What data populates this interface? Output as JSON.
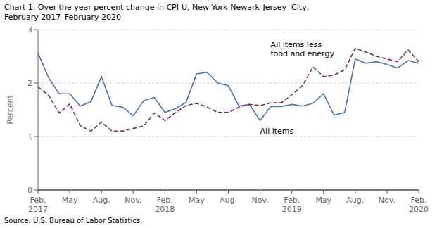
{
  "chart_data": {
    "type": "line",
    "title": "Chart 1. Over-the-year percent change in CPI-U, New York-Newark-Jersey  City,\nFebruary 2017–February 2020",
    "ylabel": "Percent",
    "source": "Source: U.S. Bureau of Labor Statistics.",
    "categories": [
      "Feb.\n2017",
      null,
      null,
      "May",
      null,
      null,
      "Aug.",
      null,
      null,
      "Nov.",
      null,
      null,
      "Feb.\n2018",
      null,
      null,
      "May",
      null,
      null,
      "Aug.",
      null,
      null,
      "Nov.",
      null,
      null,
      "Feb.\n2019",
      null,
      null,
      "May",
      null,
      null,
      "Aug.",
      null,
      null,
      "Nov.",
      null,
      null,
      "Feb.\n2020"
    ],
    "series": [
      {
        "name": "All items",
        "color": "#4472c4",
        "line_style": "solid",
        "values": [
          2.56,
          2.1,
          1.8,
          1.8,
          1.57,
          1.65,
          2.12,
          1.58,
          1.55,
          1.39,
          1.67,
          1.73,
          1.45,
          1.52,
          1.64,
          2.17,
          2.2,
          2.0,
          1.95,
          1.57,
          1.6,
          1.3,
          1.56,
          1.56,
          1.6,
          1.57,
          1.62,
          1.8,
          1.4,
          1.45,
          2.45,
          2.37,
          2.4,
          2.35,
          2.28,
          2.42,
          2.37
        ]
      },
      {
        "name": "All items less\nfood and energy",
        "color": "#7b2c5e",
        "line_style": "dashed",
        "values": [
          1.93,
          1.77,
          1.44,
          1.61,
          1.2,
          1.1,
          1.27,
          1.1,
          1.1,
          1.15,
          1.2,
          1.44,
          1.3,
          1.45,
          1.58,
          1.62,
          1.55,
          1.45,
          1.45,
          1.55,
          1.6,
          1.58,
          1.63,
          1.63,
          1.78,
          1.95,
          2.3,
          2.12,
          2.15,
          2.25,
          2.65,
          2.58,
          2.5,
          2.45,
          2.4,
          2.62,
          2.4
        ]
      }
    ],
    "ylim": [
      0,
      3
    ],
    "yticks": [
      0,
      1,
      2,
      3
    ],
    "grid": true
  }
}
